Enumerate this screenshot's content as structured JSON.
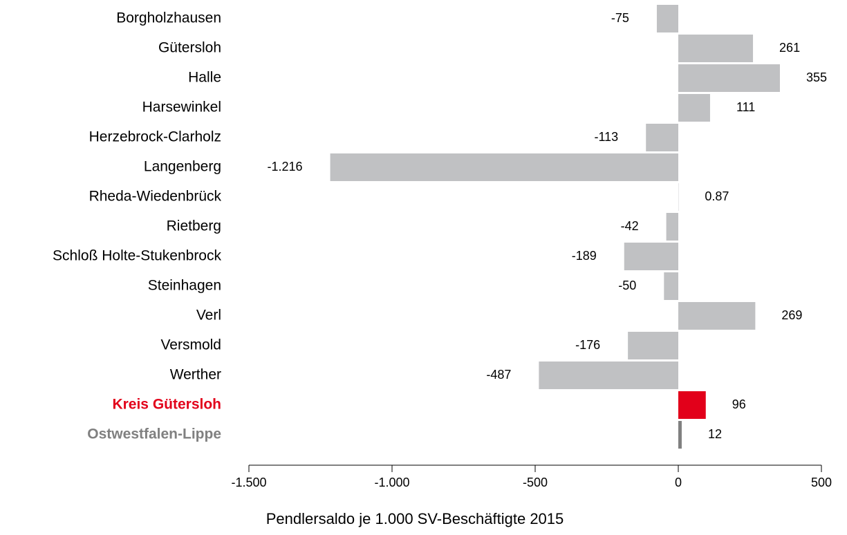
{
  "chart_data": {
    "type": "barh",
    "xlabel": "Pendlersaldo je 1.000 SV-Beschäftigte 2015",
    "categories": [
      "Borgholzhausen",
      "Gütersloh",
      "Halle",
      "Harsewinkel",
      "Herzebrock-Clarholz",
      "Langenberg",
      "Rheda-Wiedenbrück",
      "Rietberg",
      "Schloß Holte-Stukenbrock",
      "Steinhagen",
      "Verl",
      "Versmold",
      "Werther",
      "Kreis Gütersloh",
      "Ostwestfalen-Lippe"
    ],
    "values": [
      -75,
      261,
      355,
      111,
      -113,
      -1216,
      0.87,
      -42,
      -189,
      -50,
      269,
      -176,
      -487,
      96,
      12
    ],
    "value_labels": [
      "-75",
      "261",
      "355",
      "111",
      "-113",
      "-1.216",
      "0.87",
      "-42",
      "-189",
      "-50",
      "269",
      "-176",
      "-487",
      "96",
      "12"
    ],
    "color": "#c0c1c3",
    "colors": [
      "#c0c1c3",
      "#c0c1c3",
      "#c0c1c3",
      "#c0c1c3",
      "#c0c1c3",
      "#c0c1c3",
      "#c0c1c3",
      "#c0c1c3",
      "#c0c1c3",
      "#c0c1c3",
      "#c0c1c3",
      "#c0c1c3",
      "#c0c1c3",
      "#e2001a",
      "#808080"
    ],
    "xlim": [
      -1500,
      500
    ],
    "xticks": [
      {
        "value": -1500,
        "label": "-1.500"
      },
      {
        "value": -1000,
        "label": "-1.000"
      },
      -500,
      0,
      500
    ]
  }
}
